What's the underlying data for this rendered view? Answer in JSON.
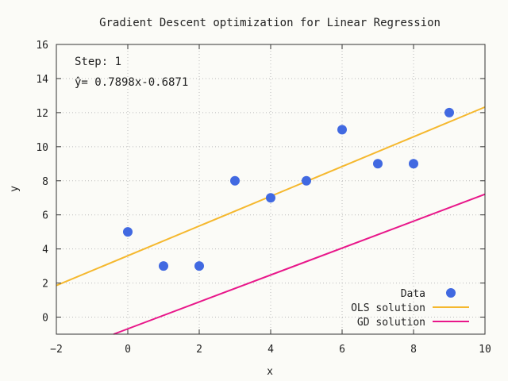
{
  "chart_data": {
    "type": "scatter",
    "title": "Gradient Descent optimization for Linear Regression",
    "xlabel": "x",
    "ylabel": "y",
    "xlim": [
      -2,
      10
    ],
    "ylim": [
      -1,
      16
    ],
    "xticks": [
      -2,
      0,
      2,
      4,
      6,
      8,
      10
    ],
    "yticks": [
      0,
      2,
      4,
      6,
      8,
      10,
      12,
      14,
      16
    ],
    "grid": true,
    "legend_position": "bottom-right",
    "annotations": {
      "step": "Step: 1",
      "equation": "ŷ= 0.7898x-0.6871"
    },
    "data_points": {
      "name": "Data",
      "color": "#4169e1",
      "x": [
        0,
        1,
        2,
        3,
        4,
        5,
        6,
        7,
        8,
        9
      ],
      "y": [
        5,
        3,
        3,
        8,
        7,
        8,
        11,
        9,
        9,
        12
      ]
    },
    "lines": [
      {
        "name": "OLS solution",
        "color": "#f5b82e",
        "slope": 0.8727,
        "intercept": 3.6
      },
      {
        "name": "GD solution",
        "color": "#e8178a",
        "slope": 0.7898,
        "intercept": -0.6871
      }
    ]
  }
}
